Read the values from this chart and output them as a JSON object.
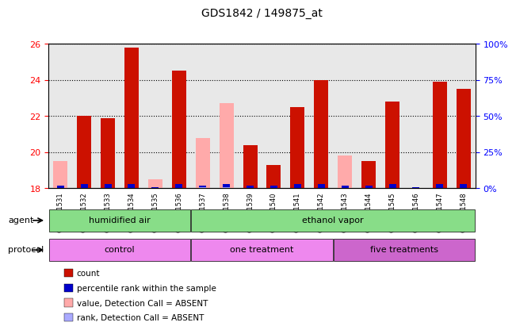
{
  "title": "GDS1842 / 149875_at",
  "samples": [
    "GSM101531",
    "GSM101532",
    "GSM101533",
    "GSM101534",
    "GSM101535",
    "GSM101536",
    "GSM101537",
    "GSM101538",
    "GSM101539",
    "GSM101540",
    "GSM101541",
    "GSM101542",
    "GSM101543",
    "GSM101544",
    "GSM101545",
    "GSM101546",
    "GSM101547",
    "GSM101548"
  ],
  "count_values": [
    null,
    22.0,
    21.9,
    25.8,
    null,
    24.5,
    null,
    null,
    20.4,
    19.3,
    22.5,
    24.0,
    null,
    19.5,
    22.8,
    null,
    23.9,
    23.5
  ],
  "absent_value": [
    19.5,
    null,
    null,
    null,
    18.5,
    null,
    20.8,
    22.7,
    null,
    null,
    null,
    null,
    19.8,
    null,
    null,
    null,
    null,
    null
  ],
  "percentile_rank": [
    2,
    3,
    3,
    3,
    1,
    3,
    2,
    3,
    2,
    2,
    3,
    3,
    2,
    2,
    3,
    1,
    3,
    3
  ],
  "rank_absent": [
    null,
    null,
    null,
    null,
    null,
    null,
    1,
    1,
    null,
    null,
    null,
    null,
    null,
    null,
    null,
    null,
    null,
    null
  ],
  "ylim_left": [
    18,
    26
  ],
  "ylim_right": [
    0,
    100
  ],
  "yticks_left": [
    18,
    20,
    22,
    24,
    26
  ],
  "yticks_right": [
    0,
    25,
    50,
    75,
    100
  ],
  "bar_color_count": "#cc1100",
  "bar_color_absent_value": "#ffaaaa",
  "bar_color_rank": "#0000cc",
  "bar_color_rank_absent": "#aaaaff",
  "agent_groups": [
    {
      "label": "humidified air",
      "start": 0,
      "end": 6,
      "color": "#99ee99"
    },
    {
      "label": "ethanol vapor",
      "start": 6,
      "end": 18,
      "color": "#99ee99"
    }
  ],
  "protocol_groups": [
    {
      "label": "control",
      "start": 0,
      "end": 6,
      "color": "#ff88ff"
    },
    {
      "label": "one treatment",
      "start": 6,
      "end": 12,
      "color": "#ff88ff"
    },
    {
      "label": "five treatments",
      "start": 12,
      "end": 18,
      "color": "#dd66dd"
    }
  ],
  "bar_width": 0.6,
  "rank_bar_width": 0.3,
  "baseline": 18,
  "background_color": "#e8e8e8",
  "grid_color": "#000000",
  "legend_items": [
    {
      "label": "count",
      "color": "#cc1100"
    },
    {
      "label": "percentile rank within the sample",
      "color": "#0000cc"
    },
    {
      "label": "value, Detection Call = ABSENT",
      "color": "#ffaaaa"
    },
    {
      "label": "rank, Detection Call = ABSENT",
      "color": "#aaaaff"
    }
  ]
}
